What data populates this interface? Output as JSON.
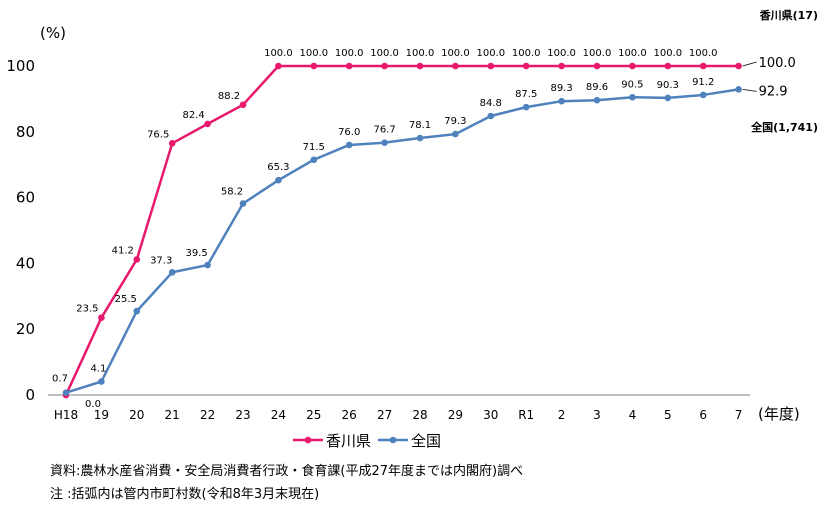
{
  "chart_data": {
    "type": "line",
    "unit_label": "(%)",
    "x_unit_label": "(年度)",
    "categories": [
      "H18",
      "19",
      "20",
      "21",
      "22",
      "23",
      "24",
      "25",
      "26",
      "27",
      "28",
      "29",
      "30",
      "R1",
      "2",
      "3",
      "4",
      "5",
      "6",
      "7"
    ],
    "ylim": [
      0,
      100
    ],
    "yticks": [
      0,
      20,
      40,
      60,
      80,
      100
    ],
    "grid": false,
    "legend_position": "bottom",
    "series": [
      {
        "name": "香川県",
        "color": "#E8196D",
        "annotation": "香川県(17)",
        "values": [
          0.0,
          23.5,
          41.2,
          76.5,
          82.4,
          88.2,
          100.0,
          100.0,
          100.0,
          100.0,
          100.0,
          100.0,
          100.0,
          100.0,
          100.0,
          100.0,
          100.0,
          100.0,
          100.0,
          100.0
        ],
        "labels": [
          "0.0",
          "23.5",
          "41.2",
          "76.5",
          "82.4",
          "88.2",
          "100.0",
          "100.0",
          "100.0",
          "100.0",
          "100.0",
          "100.0",
          "100.0",
          "100.0",
          "100.0",
          "100.0",
          "100.0",
          "100.0",
          "100.0",
          "100.0"
        ]
      },
      {
        "name": "全国",
        "color": "#4F81BD",
        "annotation": "全国(1,741)",
        "values": [
          0.7,
          4.1,
          25.5,
          37.3,
          39.5,
          58.2,
          65.3,
          71.5,
          76.0,
          76.7,
          78.1,
          79.3,
          84.8,
          87.5,
          89.3,
          89.6,
          90.5,
          90.3,
          91.2,
          92.9
        ],
        "labels": [
          "0.7",
          "4.1",
          "25.5",
          "37.3",
          "39.5",
          "58.2",
          "65.3",
          "71.5",
          "76.0",
          "76.7",
          "78.1",
          "79.3",
          "84.8",
          "87.5",
          "89.3",
          "89.6",
          "90.5",
          "90.3",
          "91.2",
          "92.9"
        ]
      }
    ]
  },
  "notes": {
    "source": "資料:農林水産省消費・安全局消費者行政・食育課(平成27年度までは内閣府)調べ",
    "footnote": " 注 :括弧内は管内市町村数(令和8年3月末現在)"
  }
}
